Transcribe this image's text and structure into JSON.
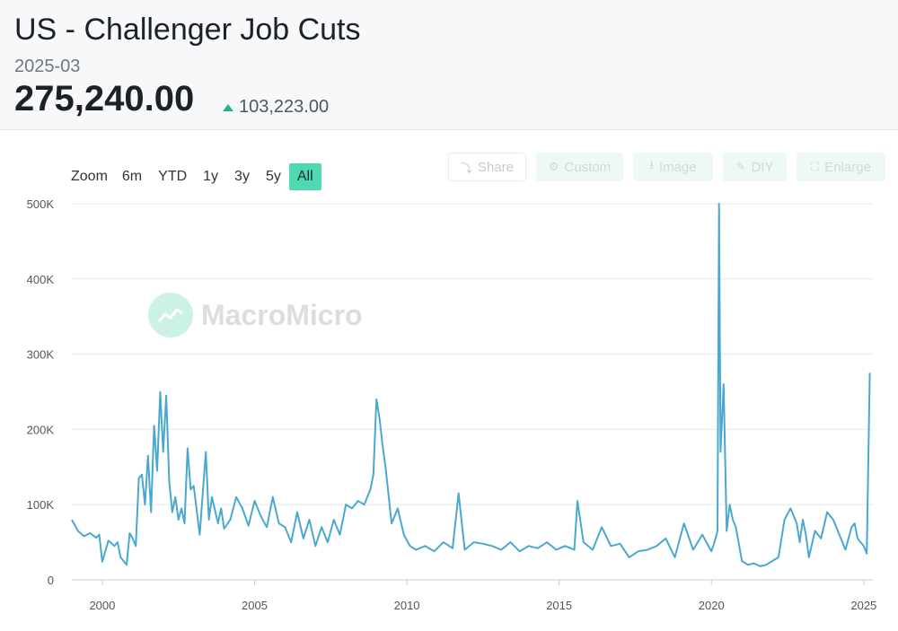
{
  "header": {
    "title": "US - Challenger Job Cuts",
    "period": "2025-03",
    "value": "275,240.00",
    "change": "103,223.00"
  },
  "zoom": {
    "label": "Zoom",
    "buttons": [
      "6m",
      "YTD",
      "1y",
      "3y",
      "5y",
      "All"
    ],
    "active": "All"
  },
  "tools": {
    "share": "Share",
    "custom": "Custom",
    "image": "Image",
    "diy": "DIY",
    "enlarge": "Enlarge"
  },
  "watermark": "MacroMicro",
  "colors": {
    "line": "#4aa8cf",
    "accent": "#4fd8b2",
    "up": "#2bb08a"
  },
  "chart_data": {
    "type": "line",
    "title": "",
    "xlabel": "",
    "ylabel": "",
    "ylim": [
      0,
      500000
    ],
    "xlim": [
      1999.0,
      2025.3
    ],
    "yticks": [
      0,
      100000,
      200000,
      300000,
      400000,
      500000
    ],
    "ytick_labels": [
      "0",
      "100K",
      "200K",
      "300K",
      "400K",
      "500K"
    ],
    "xticks": [
      2000,
      2005,
      2010,
      2015,
      2020,
      2025
    ],
    "xtick_labels": [
      "2000",
      "2005",
      "2010",
      "2015",
      "2020",
      "2025"
    ],
    "grid": true,
    "series": [
      {
        "name": "",
        "x": [
          1999.0,
          1999.2,
          1999.4,
          1999.6,
          1999.8,
          1999.9,
          2000.0,
          2000.2,
          2000.4,
          2000.5,
          2000.6,
          2000.8,
          2000.9,
          2001.0,
          2001.1,
          2001.2,
          2001.3,
          2001.4,
          2001.5,
          2001.6,
          2001.7,
          2001.8,
          2001.9,
          2002.0,
          2002.1,
          2002.2,
          2002.3,
          2002.4,
          2002.5,
          2002.6,
          2002.7,
          2002.8,
          2002.9,
          2003.0,
          2003.2,
          2003.4,
          2003.5,
          2003.6,
          2003.8,
          2003.9,
          2004.0,
          2004.2,
          2004.4,
          2004.6,
          2004.8,
          2005.0,
          2005.2,
          2005.4,
          2005.6,
          2005.8,
          2006.0,
          2006.2,
          2006.4,
          2006.6,
          2006.8,
          2007.0,
          2007.2,
          2007.4,
          2007.6,
          2007.8,
          2008.0,
          2008.2,
          2008.4,
          2008.6,
          2008.8,
          2008.9,
          2009.0,
          2009.1,
          2009.2,
          2009.3,
          2009.5,
          2009.7,
          2009.9,
          2010.1,
          2010.3,
          2010.6,
          2010.9,
          2011.2,
          2011.5,
          2011.7,
          2011.9,
          2012.2,
          2012.5,
          2012.8,
          2013.1,
          2013.4,
          2013.7,
          2014.0,
          2014.3,
          2014.6,
          2014.9,
          2015.2,
          2015.5,
          2015.6,
          2015.8,
          2016.1,
          2016.4,
          2016.7,
          2017.0,
          2017.3,
          2017.6,
          2017.9,
          2018.2,
          2018.5,
          2018.8,
          2019.1,
          2019.4,
          2019.7,
          2019.9,
          2020.0,
          2020.1,
          2020.2,
          2020.25,
          2020.3,
          2020.4,
          2020.5,
          2020.6,
          2020.7,
          2020.8,
          2021.0,
          2021.2,
          2021.4,
          2021.6,
          2021.8,
          2022.0,
          2022.2,
          2022.4,
          2022.6,
          2022.8,
          2022.9,
          2023.0,
          2023.1,
          2023.2,
          2023.4,
          2023.6,
          2023.8,
          2024.0,
          2024.2,
          2024.4,
          2024.6,
          2024.7,
          2024.8,
          2024.9,
          2025.0,
          2025.1,
          2025.2
        ],
        "y": [
          80000,
          65000,
          58000,
          62000,
          56000,
          60000,
          24000,
          52000,
          45000,
          50000,
          30000,
          20000,
          62000,
          55000,
          45000,
          135000,
          140000,
          100000,
          165000,
          90000,
          205000,
          145000,
          250000,
          170000,
          245000,
          130000,
          90000,
          110000,
          80000,
          95000,
          75000,
          175000,
          120000,
          125000,
          60000,
          170000,
          80000,
          110000,
          75000,
          95000,
          68000,
          80000,
          110000,
          95000,
          72000,
          105000,
          85000,
          70000,
          110000,
          75000,
          70000,
          50000,
          90000,
          55000,
          80000,
          45000,
          70000,
          50000,
          80000,
          60000,
          100000,
          95000,
          105000,
          100000,
          120000,
          140000,
          240000,
          215000,
          180000,
          150000,
          75000,
          95000,
          60000,
          45000,
          40000,
          45000,
          38000,
          50000,
          42000,
          115000,
          40000,
          50000,
          48000,
          45000,
          40000,
          50000,
          38000,
          45000,
          42000,
          50000,
          40000,
          45000,
          40000,
          105000,
          50000,
          40000,
          70000,
          45000,
          48000,
          30000,
          38000,
          40000,
          45000,
          55000,
          30000,
          75000,
          40000,
          60000,
          45000,
          38000,
          50000,
          65000,
          500000,
          170000,
          260000,
          65000,
          100000,
          80000,
          70000,
          25000,
          20000,
          22000,
          18000,
          20000,
          25000,
          30000,
          80000,
          95000,
          75000,
          50000,
          80000,
          60000,
          30000,
          65000,
          55000,
          90000,
          80000,
          60000,
          40000,
          70000,
          75000,
          55000,
          50000,
          45000,
          35000,
          275240
        ]
      }
    ]
  }
}
